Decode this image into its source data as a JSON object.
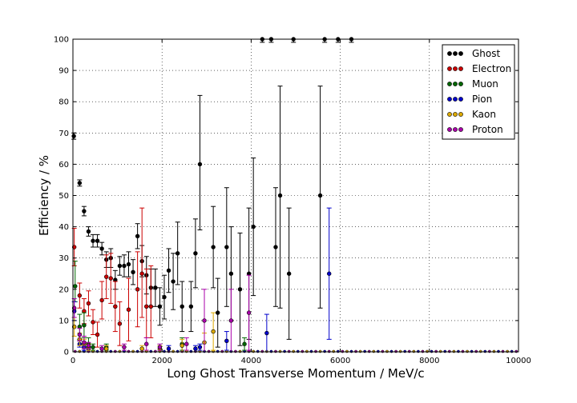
{
  "chart_data": {
    "type": "scatter",
    "xlabel": "Long Ghost Transverse Momentum / MeV/c",
    "ylabel": "Efficiency / %",
    "xlim": [
      0,
      10000
    ],
    "ylim": [
      0,
      100
    ],
    "xticks": [
      "0",
      "2000",
      "4000",
      "6000",
      "8000",
      "10000"
    ],
    "yticks": [
      "0",
      "10",
      "20",
      "30",
      "40",
      "50",
      "60",
      "70",
      "80",
      "90",
      "100"
    ],
    "grid": true,
    "legend_position": "top-right",
    "series": [
      {
        "name": "Ghost",
        "color": "#000000",
        "points": [
          [
            20,
            69,
            1,
            1
          ],
          [
            150,
            54,
            1,
            1
          ],
          [
            250,
            45,
            1.5,
            1.5
          ],
          [
            350,
            38.5,
            1.5,
            1.5
          ],
          [
            450,
            35.5,
            2,
            2
          ],
          [
            550,
            35.5,
            2,
            2
          ],
          [
            650,
            33,
            2,
            2
          ],
          [
            750,
            29.5,
            2.5,
            2.5
          ],
          [
            850,
            30,
            3,
            3
          ],
          [
            950,
            23,
            3,
            3
          ],
          [
            1050,
            27.5,
            3,
            3
          ],
          [
            1150,
            27.5,
            3.5,
            3.5
          ],
          [
            1250,
            28,
            4,
            4
          ],
          [
            1350,
            25.5,
            4,
            4
          ],
          [
            1450,
            37,
            4,
            4
          ],
          [
            1550,
            29,
            5,
            5
          ],
          [
            1650,
            24.5,
            6,
            6
          ],
          [
            1750,
            20.5,
            6,
            6
          ],
          [
            1850,
            20.5,
            6,
            6
          ],
          [
            1950,
            14.5,
            6,
            6
          ],
          [
            2050,
            17.5,
            7,
            7
          ],
          [
            2150,
            26,
            7,
            7
          ],
          [
            2250,
            22.5,
            9,
            9
          ],
          [
            2350,
            31.5,
            10,
            10
          ],
          [
            2450,
            14.5,
            8,
            8
          ],
          [
            2650,
            14.5,
            8,
            8
          ],
          [
            2750,
            31.5,
            11,
            11
          ],
          [
            2850,
            60,
            21,
            22
          ],
          [
            3150,
            33.5,
            13,
            13
          ],
          [
            3250,
            12.5,
            11,
            11
          ],
          [
            3450,
            33.5,
            19,
            19
          ],
          [
            3550,
            25,
            15,
            15
          ],
          [
            3750,
            20,
            18,
            18
          ],
          [
            3950,
            25,
            21,
            21
          ],
          [
            4050,
            40,
            22,
            22
          ],
          [
            4250,
            100,
            1,
            1
          ],
          [
            4450,
            100,
            1,
            1
          ],
          [
            4550,
            33.5,
            19,
            19
          ],
          [
            4650,
            50,
            36,
            35
          ],
          [
            4850,
            25,
            21,
            21
          ],
          [
            4950,
            100,
            1,
            1
          ],
          [
            5550,
            50,
            36,
            35
          ],
          [
            5650,
            100,
            1,
            1
          ],
          [
            5950,
            100,
            1,
            1
          ],
          [
            6250,
            100,
            1,
            1
          ]
        ]
      },
      {
        "name": "Electron",
        "color": "#cc0000",
        "points": [
          [
            30,
            33.5,
            6,
            6
          ],
          [
            150,
            18,
            4,
            4
          ],
          [
            250,
            13,
            4,
            4
          ],
          [
            350,
            15.5,
            4,
            4
          ],
          [
            450,
            9.5,
            4,
            4
          ],
          [
            550,
            5.5,
            4,
            4
          ],
          [
            650,
            16.5,
            6,
            6
          ],
          [
            750,
            24,
            7,
            7
          ],
          [
            850,
            23.5,
            8,
            8
          ],
          [
            950,
            14.5,
            8,
            8
          ],
          [
            1050,
            9,
            7,
            7
          ],
          [
            1250,
            13.5,
            10,
            10
          ],
          [
            1450,
            20,
            12,
            12
          ],
          [
            1550,
            25,
            14,
            21
          ],
          [
            1650,
            14.5,
            10,
            12
          ],
          [
            1750,
            14.5,
            10,
            13
          ]
        ]
      },
      {
        "name": "Muon",
        "color": "#006600",
        "points": [
          [
            50,
            21,
            5,
            8
          ],
          [
            150,
            8,
            4,
            4
          ],
          [
            250,
            8.5,
            4,
            4
          ],
          [
            350,
            2.5,
            2,
            2
          ],
          [
            450,
            1.5,
            1,
            1
          ],
          [
            750,
            1.5,
            1,
            1
          ],
          [
            2450,
            2.5,
            2,
            2
          ],
          [
            3850,
            2.5,
            2,
            2
          ]
        ]
      },
      {
        "name": "Pion",
        "color": "#0000cc",
        "points": [
          [
            30,
            13,
            3,
            3
          ],
          [
            150,
            2.5,
            1,
            1
          ],
          [
            250,
            1.5,
            1,
            1
          ],
          [
            350,
            1,
            0.5,
            0.5
          ],
          [
            2150,
            1,
            1,
            1
          ],
          [
            2750,
            1,
            1,
            1
          ],
          [
            2850,
            1.5,
            1,
            1
          ],
          [
            3450,
            3.5,
            3,
            3
          ],
          [
            4350,
            6,
            6,
            6
          ],
          [
            5750,
            25,
            21,
            21
          ]
        ]
      },
      {
        "name": "Kaon",
        "color": "#ddaa00",
        "points": [
          [
            30,
            8,
            3,
            3
          ],
          [
            150,
            4,
            2,
            2
          ],
          [
            250,
            2.5,
            1.5,
            1.5
          ],
          [
            350,
            1.5,
            1,
            1
          ],
          [
            750,
            1,
            1,
            1
          ],
          [
            1550,
            1,
            1,
            1
          ],
          [
            1950,
            1,
            1,
            1
          ],
          [
            2450,
            2,
            2,
            2
          ],
          [
            2950,
            3,
            3,
            3
          ],
          [
            3150,
            6.5,
            6,
            6
          ]
        ]
      },
      {
        "name": "Proton",
        "color": "#aa00aa",
        "points": [
          [
            30,
            14,
            3,
            3
          ],
          [
            150,
            5.5,
            2,
            2
          ],
          [
            250,
            3,
            2,
            2
          ],
          [
            350,
            2,
            1,
            1
          ],
          [
            650,
            1,
            1,
            1
          ],
          [
            1150,
            1.5,
            1,
            1
          ],
          [
            1650,
            2.5,
            2,
            2
          ],
          [
            1950,
            1.5,
            1,
            1
          ],
          [
            2550,
            2.5,
            2,
            2
          ],
          [
            2950,
            10,
            10,
            10
          ],
          [
            3550,
            10,
            10,
            10
          ],
          [
            3950,
            12.5,
            12,
            12
          ]
        ]
      }
    ]
  }
}
